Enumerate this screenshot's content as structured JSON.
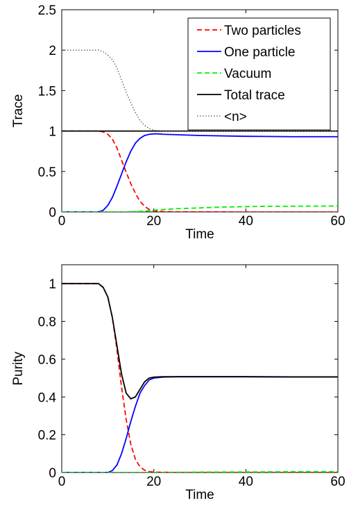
{
  "chart_data": [
    {
      "type": "line",
      "xlabel": "Time",
      "ylabel": "Trace",
      "xlim": [
        0,
        60
      ],
      "ylim": [
        0,
        2.5
      ],
      "xticks": [
        "0",
        "20",
        "40",
        "60"
      ],
      "yticks": [
        "0",
        "0.5",
        "1",
        "1.5",
        "2",
        "2.5"
      ],
      "grid": false,
      "legend_position": "top-right",
      "series": [
        {
          "name": "Two particles",
          "color": "#ff0000",
          "style": "dashed",
          "x": [
            0,
            8,
            9,
            10,
            11,
            12,
            13,
            14,
            15,
            16,
            17,
            18,
            19,
            20,
            22,
            25,
            30,
            40,
            50,
            60
          ],
          "values": [
            1,
            1,
            0.99,
            0.96,
            0.9,
            0.79,
            0.64,
            0.49,
            0.35,
            0.23,
            0.13,
            0.07,
            0.03,
            0.015,
            0.005,
            0.002,
            0.001,
            0,
            0,
            0
          ]
        },
        {
          "name": "One particle",
          "color": "#0000ff",
          "style": "solid",
          "x": [
            0,
            8,
            9,
            10,
            11,
            12,
            13,
            14,
            15,
            16,
            17,
            18,
            19,
            20,
            21,
            22,
            25,
            30,
            40,
            50,
            60
          ],
          "values": [
            0,
            0,
            0.02,
            0.08,
            0.18,
            0.32,
            0.47,
            0.62,
            0.75,
            0.85,
            0.91,
            0.945,
            0.96,
            0.965,
            0.965,
            0.96,
            0.955,
            0.945,
            0.935,
            0.93,
            0.93
          ]
        },
        {
          "name": "Vacuum",
          "color": "#00ee00",
          "style": "dashed",
          "x": [
            0,
            14,
            16,
            18,
            20,
            22,
            25,
            30,
            35,
            40,
            45,
            50,
            55,
            60
          ],
          "values": [
            0,
            0,
            0.005,
            0.01,
            0.02,
            0.03,
            0.04,
            0.05,
            0.06,
            0.065,
            0.07,
            0.07,
            0.072,
            0.073
          ]
        },
        {
          "name": "Total trace",
          "color": "#000000",
          "style": "solid",
          "x": [
            0,
            60
          ],
          "values": [
            1,
            1
          ]
        },
        {
          "name": "<n>",
          "color": "#555555",
          "style": "dotted",
          "x": [
            0,
            8,
            9,
            10,
            11,
            12,
            13,
            14,
            15,
            16,
            17,
            18,
            19,
            20,
            22,
            25,
            30,
            40,
            50,
            60
          ],
          "values": [
            2,
            2,
            1.98,
            1.94,
            1.88,
            1.78,
            1.63,
            1.48,
            1.35,
            1.23,
            1.13,
            1.07,
            1.03,
            1.01,
            1.0,
            1.0,
            1.0,
            1.0,
            1.0,
            1.0
          ]
        }
      ]
    },
    {
      "type": "line",
      "xlabel": "Time",
      "ylabel": "Purity",
      "xlim": [
        0,
        60
      ],
      "ylim": [
        0,
        1.1
      ],
      "xticks": [
        "0",
        "20",
        "40",
        "60"
      ],
      "yticks": [
        "0",
        "0.2",
        "0.4",
        "0.6",
        "0.8",
        "1"
      ],
      "grid": false,
      "series": [
        {
          "color": "#ff0000",
          "style": "dashed",
          "x": [
            0,
            8,
            9,
            10,
            11,
            12,
            13,
            14,
            15,
            16,
            17,
            18,
            19,
            20,
            25,
            30,
            40,
            50,
            60
          ],
          "values": [
            1,
            1,
            0.98,
            0.93,
            0.82,
            0.65,
            0.45,
            0.28,
            0.15,
            0.07,
            0.03,
            0.012,
            0.005,
            0.002,
            0,
            0,
            0,
            0,
            0
          ]
        },
        {
          "color": "#0000ff",
          "style": "solid",
          "x": [
            0,
            10,
            11,
            12,
            13,
            14,
            15,
            16,
            17,
            18,
            19,
            20,
            22,
            25,
            30,
            40,
            50,
            60
          ],
          "values": [
            0,
            0,
            0.01,
            0.04,
            0.1,
            0.18,
            0.27,
            0.35,
            0.42,
            0.46,
            0.49,
            0.5,
            0.505,
            0.507,
            0.507,
            0.507,
            0.506,
            0.506
          ]
        },
        {
          "color": "#00ee00",
          "style": "dashed",
          "x": [
            0,
            15,
            20,
            30,
            40,
            50,
            60
          ],
          "values": [
            0,
            0,
            0,
            0.002,
            0.003,
            0.004,
            0.004
          ]
        },
        {
          "color": "#000000",
          "style": "solid",
          "x": [
            0,
            8,
            9,
            10,
            11,
            12,
            13,
            14,
            15,
            16,
            17,
            18,
            19,
            20,
            22,
            25,
            30,
            40,
            50,
            60
          ],
          "values": [
            1,
            1,
            0.98,
            0.93,
            0.82,
            0.67,
            0.52,
            0.42,
            0.39,
            0.4,
            0.44,
            0.48,
            0.5,
            0.505,
            0.507,
            0.507,
            0.507,
            0.507,
            0.506,
            0.506
          ]
        }
      ]
    }
  ]
}
